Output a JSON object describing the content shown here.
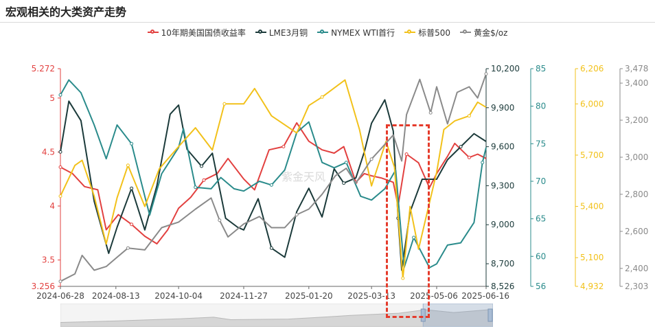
{
  "title": "宏观相关的大类资产走势",
  "watermark": "紫金天风",
  "colors": {
    "treasury": "#e2403f",
    "copper": "#1b3a3a",
    "wti": "#2a8b8b",
    "sp500": "#f2c11a",
    "gold": "#8a8a8a",
    "highlight": "#e53b2b"
  },
  "chart_data": {
    "type": "line",
    "x_ticks": [
      "2024-06-28",
      "2024-08-13",
      "2024-10-04",
      "2024-11-27",
      "2025-01-20",
      "2025-03-13",
      "2025-05-06",
      "2025-06-16"
    ],
    "x_range": [
      "2024-06-28",
      "2025-06-16"
    ],
    "axes": [
      {
        "id": "treasury",
        "min": 3.256,
        "max": 5.272,
        "ticks": [
          "3.256",
          "3.5",
          "4",
          "4.5",
          "5",
          "5.272"
        ]
      },
      {
        "id": "copper",
        "min": 8526,
        "max": 10200,
        "ticks": [
          "8,526",
          "8,700",
          "9,000",
          "9,300",
          "9,600",
          "9,900",
          "10,200"
        ]
      },
      {
        "id": "wti",
        "min": 56,
        "max": 85,
        "ticks": [
          "56",
          "60",
          "65",
          "70",
          "75",
          "80",
          "85"
        ]
      },
      {
        "id": "sp500",
        "min": 4932,
        "max": 6206,
        "ticks": [
          "4,932",
          "5,100",
          "5,400",
          "5,700",
          "6,000",
          "6,206"
        ]
      },
      {
        "id": "gold",
        "min": 2303,
        "max": 3478,
        "ticks": [
          "2,303",
          "2,400",
          "2,600",
          "2,800",
          "3,000",
          "3,200",
          "3,400",
          "3,478"
        ]
      }
    ],
    "series": [
      {
        "name": "10年期美国国债收益率",
        "key": "treasury",
        "axis": "treasury",
        "points": [
          [
            "2024-06-28",
            4.36
          ],
          [
            "2024-07-08",
            4.3
          ],
          [
            "2024-07-18",
            4.18
          ],
          [
            "2024-07-29",
            4.15
          ],
          [
            "2024-08-05",
            3.78
          ],
          [
            "2024-08-15",
            3.92
          ],
          [
            "2024-08-26",
            3.83
          ],
          [
            "2024-09-06",
            3.72
          ],
          [
            "2024-09-16",
            3.65
          ],
          [
            "2024-09-25",
            3.78
          ],
          [
            "2024-10-04",
            3.98
          ],
          [
            "2024-10-14",
            4.08
          ],
          [
            "2024-10-25",
            4.24
          ],
          [
            "2024-11-05",
            4.3
          ],
          [
            "2024-11-14",
            4.44
          ],
          [
            "2024-11-27",
            4.25
          ],
          [
            "2024-12-06",
            4.15
          ],
          [
            "2024-12-18",
            4.52
          ],
          [
            "2024-12-30",
            4.55
          ],
          [
            "2025-01-10",
            4.77
          ],
          [
            "2025-01-20",
            4.6
          ],
          [
            "2025-01-31",
            4.52
          ],
          [
            "2025-02-10",
            4.49
          ],
          [
            "2025-02-18",
            4.55
          ],
          [
            "2025-02-28",
            4.22
          ],
          [
            "2025-03-07",
            4.3
          ],
          [
            "2025-03-13",
            4.28
          ],
          [
            "2025-03-21",
            4.26
          ],
          [
            "2025-03-31",
            4.22
          ],
          [
            "2025-04-04",
            4.0
          ],
          [
            "2025-04-11",
            4.48
          ],
          [
            "2025-04-21",
            4.4
          ],
          [
            "2025-04-30",
            4.17
          ],
          [
            "2025-05-06",
            4.3
          ],
          [
            "2025-05-15",
            4.46
          ],
          [
            "2025-05-21",
            4.58
          ],
          [
            "2025-06-02",
            4.45
          ],
          [
            "2025-06-09",
            4.48
          ],
          [
            "2025-06-16",
            4.44
          ]
        ]
      },
      {
        "name": "LME3月铜",
        "key": "copper",
        "axis": "copper",
        "points": [
          [
            "2024-06-28",
            9560
          ],
          [
            "2024-07-05",
            9950
          ],
          [
            "2024-07-15",
            9800
          ],
          [
            "2024-07-26",
            9180
          ],
          [
            "2024-08-07",
            8780
          ],
          [
            "2024-08-14",
            8980
          ],
          [
            "2024-08-26",
            9280
          ],
          [
            "2024-09-06",
            8960
          ],
          [
            "2024-09-16",
            9300
          ],
          [
            "2024-09-27",
            9850
          ],
          [
            "2024-10-04",
            9920
          ],
          [
            "2024-10-11",
            9580
          ],
          [
            "2024-10-23",
            9450
          ],
          [
            "2024-11-01",
            9550
          ],
          [
            "2024-11-12",
            9050
          ],
          [
            "2024-11-22",
            8980
          ],
          [
            "2024-11-27",
            8960
          ],
          [
            "2024-12-09",
            9200
          ],
          [
            "2024-12-20",
            8820
          ],
          [
            "2024-12-31",
            8750
          ],
          [
            "2025-01-10",
            9100
          ],
          [
            "2025-01-20",
            9280
          ],
          [
            "2025-01-31",
            9060
          ],
          [
            "2025-02-10",
            9430
          ],
          [
            "2025-02-18",
            9320
          ],
          [
            "2025-02-28",
            9360
          ],
          [
            "2025-03-07",
            9560
          ],
          [
            "2025-03-13",
            9780
          ],
          [
            "2025-03-24",
            9960
          ],
          [
            "2025-03-31",
            9720
          ],
          [
            "2025-04-04",
            9050
          ],
          [
            "2025-04-07",
            8650
          ],
          [
            "2025-04-14",
            9100
          ],
          [
            "2025-04-24",
            9350
          ],
          [
            "2025-05-06",
            9350
          ],
          [
            "2025-05-15",
            9500
          ],
          [
            "2025-05-26",
            9600
          ],
          [
            "2025-06-06",
            9700
          ],
          [
            "2025-06-16",
            9640
          ]
        ]
      },
      {
        "name": "NYMEX WTI首行",
        "key": "wti",
        "axis": "wti",
        "points": [
          [
            "2024-06-28",
            81.5
          ],
          [
            "2024-07-05",
            83.5
          ],
          [
            "2024-07-15",
            81.8
          ],
          [
            "2024-07-26",
            77.5
          ],
          [
            "2024-08-05",
            73.0
          ],
          [
            "2024-08-14",
            77.5
          ],
          [
            "2024-08-26",
            75.0
          ],
          [
            "2024-09-06",
            68.0
          ],
          [
            "2024-09-10",
            65.5
          ],
          [
            "2024-09-20",
            71.0
          ],
          [
            "2024-10-04",
            74.5
          ],
          [
            "2024-10-08",
            77.0
          ],
          [
            "2024-10-18",
            69.2
          ],
          [
            "2024-10-31",
            69.0
          ],
          [
            "2024-11-08",
            70.5
          ],
          [
            "2024-11-19",
            69.0
          ],
          [
            "2024-11-27",
            68.7
          ],
          [
            "2024-12-10",
            70.0
          ],
          [
            "2024-12-20",
            69.5
          ],
          [
            "2024-12-31",
            71.5
          ],
          [
            "2025-01-10",
            76.5
          ],
          [
            "2025-01-20",
            77.9
          ],
          [
            "2025-01-31",
            72.5
          ],
          [
            "2025-02-10",
            71.8
          ],
          [
            "2025-02-20",
            72.5
          ],
          [
            "2025-03-04",
            68.0
          ],
          [
            "2025-03-13",
            67.5
          ],
          [
            "2025-03-24",
            69.0
          ],
          [
            "2025-04-02",
            71.5
          ],
          [
            "2025-04-09",
            58.5
          ],
          [
            "2025-04-17",
            62.5
          ],
          [
            "2025-04-30",
            58.5
          ],
          [
            "2025-05-06",
            59.0
          ],
          [
            "2025-05-15",
            61.5
          ],
          [
            "2025-05-26",
            61.8
          ],
          [
            "2025-06-06",
            64.5
          ],
          [
            "2025-06-13",
            72.5
          ],
          [
            "2025-06-16",
            74.5
          ]
        ]
      },
      {
        "name": "标普500",
        "key": "sp500",
        "axis": "sp500",
        "points": [
          [
            "2024-06-28",
            5460
          ],
          [
            "2024-07-10",
            5640
          ],
          [
            "2024-07-16",
            5670
          ],
          [
            "2024-07-26",
            5460
          ],
          [
            "2024-08-05",
            5180
          ],
          [
            "2024-08-14",
            5450
          ],
          [
            "2024-08-23",
            5640
          ],
          [
            "2024-09-06",
            5400
          ],
          [
            "2024-09-18",
            5620
          ],
          [
            "2024-10-04",
            5750
          ],
          [
            "2024-10-18",
            5860
          ],
          [
            "2024-11-01",
            5730
          ],
          [
            "2024-11-11",
            6000
          ],
          [
            "2024-11-27",
            6000
          ],
          [
            "2024-12-06",
            6090
          ],
          [
            "2024-12-20",
            5930
          ],
          [
            "2025-01-10",
            5830
          ],
          [
            "2025-01-20",
            5990
          ],
          [
            "2025-01-31",
            6040
          ],
          [
            "2025-02-19",
            6140
          ],
          [
            "2025-03-03",
            5850
          ],
          [
            "2025-03-13",
            5520
          ],
          [
            "2025-03-25",
            5780
          ],
          [
            "2025-04-01",
            5630
          ],
          [
            "2025-04-08",
            4980
          ],
          [
            "2025-04-14",
            5400
          ],
          [
            "2025-04-21",
            5150
          ],
          [
            "2025-05-06",
            5600
          ],
          [
            "2025-05-12",
            5850
          ],
          [
            "2025-05-21",
            5900
          ],
          [
            "2025-06-02",
            5930
          ],
          [
            "2025-06-09",
            6010
          ],
          [
            "2025-06-16",
            5980
          ]
        ]
      },
      {
        "name": "黄金$/oz",
        "key": "gold",
        "axis": "gold",
        "points": [
          [
            "2024-06-28",
            2330
          ],
          [
            "2024-07-10",
            2370
          ],
          [
            "2024-07-16",
            2470
          ],
          [
            "2024-07-26",
            2390
          ],
          [
            "2024-08-05",
            2410
          ],
          [
            "2024-08-14",
            2460
          ],
          [
            "2024-08-23",
            2510
          ],
          [
            "2024-09-06",
            2500
          ],
          [
            "2024-09-20",
            2620
          ],
          [
            "2024-10-04",
            2650
          ],
          [
            "2024-10-18",
            2720
          ],
          [
            "2024-10-31",
            2780
          ],
          [
            "2024-11-07",
            2660
          ],
          [
            "2024-11-14",
            2570
          ],
          [
            "2024-11-27",
            2640
          ],
          [
            "2024-12-10",
            2680
          ],
          [
            "2024-12-20",
            2620
          ],
          [
            "2024-12-31",
            2620
          ],
          [
            "2025-01-10",
            2690
          ],
          [
            "2025-01-20",
            2720
          ],
          [
            "2025-01-31",
            2800
          ],
          [
            "2025-02-11",
            2900
          ],
          [
            "2025-02-20",
            2940
          ],
          [
            "2025-02-28",
            2860
          ],
          [
            "2025-03-13",
            2990
          ],
          [
            "2025-03-20",
            3040
          ],
          [
            "2025-03-31",
            3120
          ],
          [
            "2025-04-07",
            2980
          ],
          [
            "2025-04-11",
            3230
          ],
          [
            "2025-04-22",
            3420
          ],
          [
            "2025-05-01",
            3240
          ],
          [
            "2025-05-06",
            3380
          ],
          [
            "2025-05-15",
            3180
          ],
          [
            "2025-05-23",
            3350
          ],
          [
            "2025-06-02",
            3380
          ],
          [
            "2025-06-09",
            3320
          ],
          [
            "2025-06-16",
            3450
          ]
        ]
      }
    ],
    "overview": [
      [
        "2024-06-28",
        2330
      ],
      [
        "2024-08-14",
        2460
      ],
      [
        "2024-10-04",
        2650
      ],
      [
        "2024-10-31",
        2780
      ],
      [
        "2024-11-14",
        2570
      ],
      [
        "2024-12-31",
        2620
      ],
      [
        "2025-01-31",
        2800
      ],
      [
        "2025-02-20",
        2940
      ],
      [
        "2025-03-31",
        3120
      ],
      [
        "2025-04-22",
        3420
      ],
      [
        "2025-05-15",
        3180
      ],
      [
        "2025-06-16",
        3450
      ]
    ],
    "legend_position": "top-center",
    "grid": false,
    "highlight": {
      "from": "2025-03-27",
      "to": "2025-04-28",
      "style": "dashed box"
    }
  }
}
